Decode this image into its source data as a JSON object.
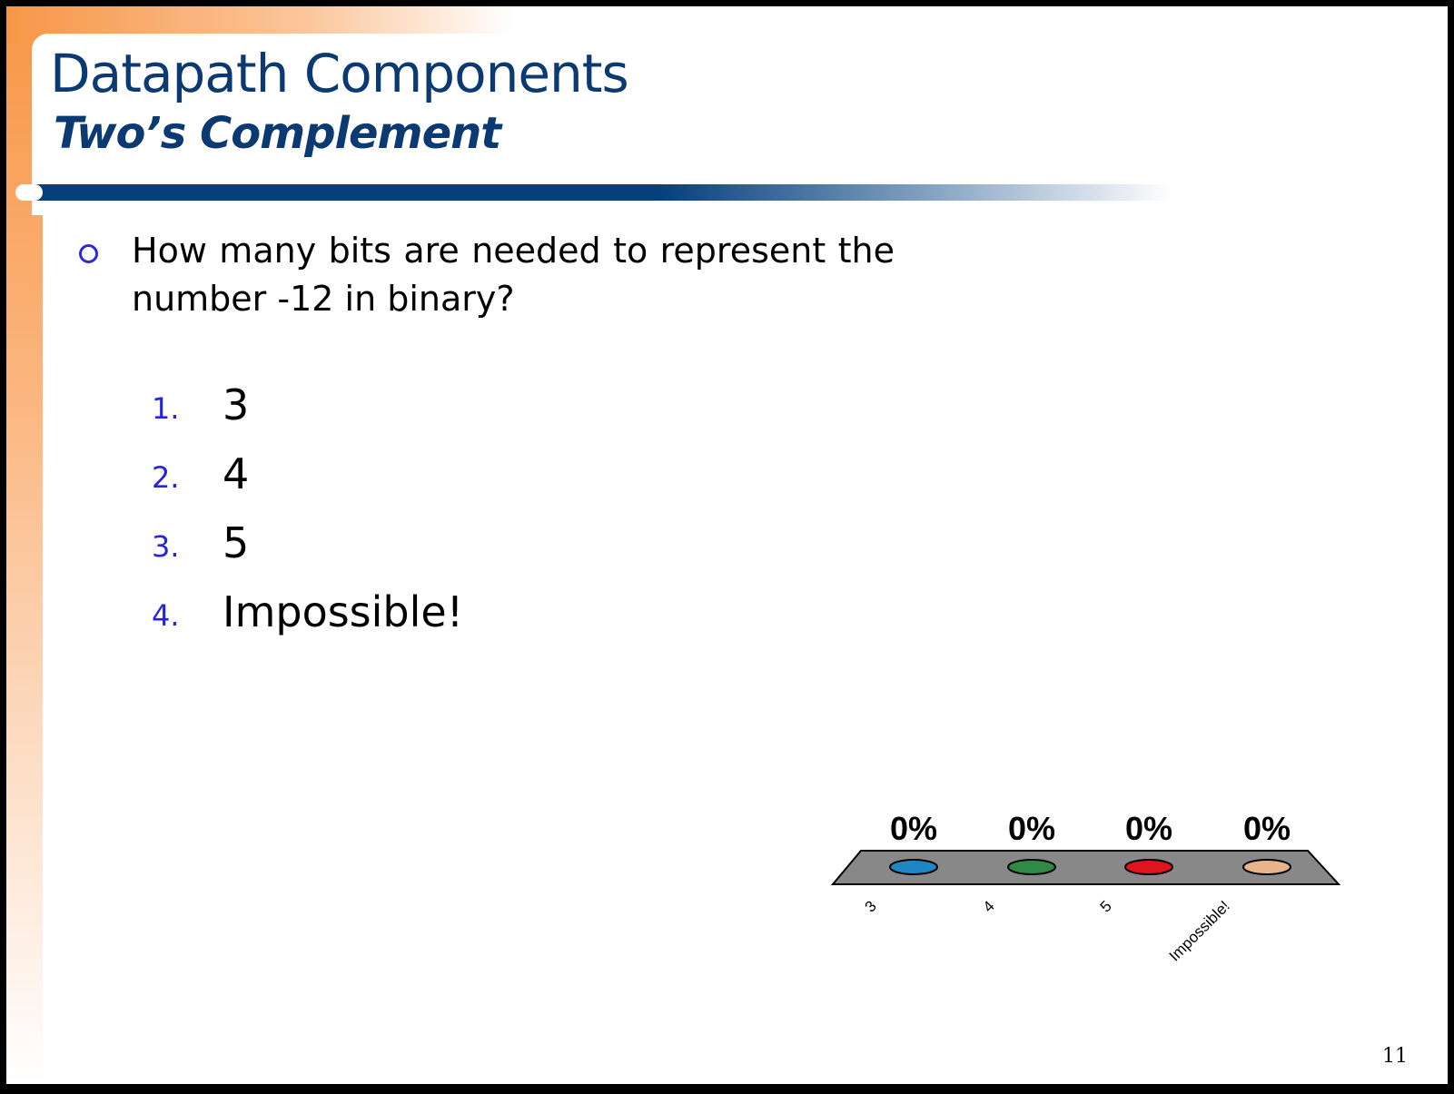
{
  "slide": {
    "title": "Datapath Components",
    "subtitle": "Two’s Complement",
    "question": "How many bits are needed to represent the number -12 in binary?",
    "page_number": "11",
    "colors": {
      "title": "#0b3a73",
      "accent_orange": "#f79646",
      "rule_blue": "#063f7a",
      "list_number": "#2424e0"
    }
  },
  "answers": [
    {
      "number": "1.",
      "text": "3"
    },
    {
      "number": "2.",
      "text": "4"
    },
    {
      "number": "3.",
      "text": "5"
    },
    {
      "number": "4.",
      "text": "Impossible!"
    }
  ],
  "chart_data": {
    "type": "bar",
    "categories": [
      "3",
      "4",
      "5",
      "Impossible!"
    ],
    "values": [
      0,
      0,
      0,
      0
    ],
    "value_labels": [
      "0%",
      "0%",
      "0%",
      "0%"
    ],
    "ylim": [
      0,
      100
    ],
    "colors": [
      "#1f86c6",
      "#2f8a45",
      "#e0141c",
      "#e8b48a"
    ]
  }
}
